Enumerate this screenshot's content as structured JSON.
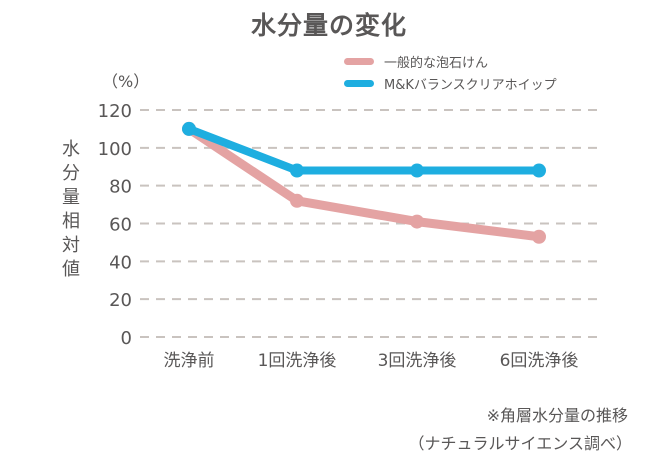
{
  "chart_data": {
    "type": "line",
    "title": "水分量の変化",
    "unit_label": "（%）",
    "ylabel": "水分量相対値",
    "xlabel": "",
    "categories": [
      "洗浄前",
      "1回洗浄後",
      "3回洗浄後",
      "6回洗浄後"
    ],
    "ylim": [
      0,
      120
    ],
    "yticks": [
      0,
      20,
      40,
      60,
      80,
      100,
      120
    ],
    "grid": true,
    "legend_position": "top-right",
    "series": [
      {
        "name": "一般的な泡石けん",
        "color": "#e4a3a3",
        "values": [
          110,
          72,
          61,
          53
        ]
      },
      {
        "name": "M&Kバランスクリアホイップ",
        "color": "#1eaee0",
        "values": [
          110,
          88,
          88,
          88
        ]
      }
    ],
    "notes": [
      "※角層水分量の推移",
      "（ナチュラルサイエンス調べ）"
    ]
  }
}
